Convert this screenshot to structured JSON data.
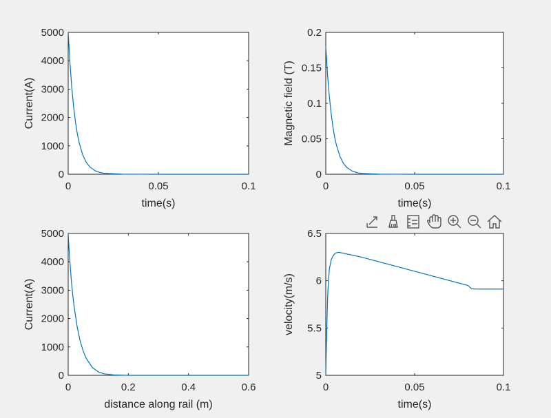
{
  "window": {
    "background": "#f0f0f0"
  },
  "toolbar": {
    "icons": [
      "export-icon",
      "brush-icon",
      "legend-icon",
      "pan-icon",
      "zoom-in-icon",
      "zoom-out-icon",
      "home-icon"
    ]
  },
  "colors": {
    "line": "#0072bd",
    "axes": "#262626",
    "plot_bg": "#ffffff"
  },
  "chart_data": [
    {
      "type": "line",
      "title": "",
      "xlabel": "time(s)",
      "ylabel": "Current(A)",
      "xlim": [
        0,
        0.1
      ],
      "ylim": [
        0,
        5000
      ],
      "xticks": [
        0,
        0.05,
        0.1
      ],
      "xtick_labels": [
        "0",
        "0.05",
        "0.1"
      ],
      "yticks": [
        0,
        1000,
        2000,
        3000,
        4000,
        5000
      ],
      "ytick_labels": [
        "0",
        "1000",
        "2000",
        "3000",
        "4000",
        "5000"
      ],
      "grid": false,
      "series": [
        {
          "x": [
            0,
            0.001,
            0.002,
            0.003,
            0.004,
            0.005,
            0.006,
            0.008,
            0.01,
            0.012,
            0.015,
            0.018,
            0.02,
            0.03,
            0.05,
            0.07,
            0.1
          ],
          "y": [
            5000,
            3900,
            3050,
            2380,
            1860,
            1450,
            1130,
            690,
            420,
            255,
            120,
            55,
            30,
            5,
            0,
            0,
            0
          ]
        }
      ]
    },
    {
      "type": "line",
      "title": "",
      "xlabel": "time(s)",
      "ylabel": "Magnetic field (T)",
      "xlim": [
        0,
        0.1
      ],
      "ylim": [
        0,
        0.2
      ],
      "xticks": [
        0,
        0.05,
        0.1
      ],
      "xtick_labels": [
        "0",
        "0.05",
        "0.1"
      ],
      "yticks": [
        0,
        0.05,
        0.1,
        0.15,
        0.2
      ],
      "ytick_labels": [
        "0",
        "0.05",
        "0.1",
        "0.15",
        "0.2"
      ],
      "grid": false,
      "series": [
        {
          "x": [
            0,
            0.001,
            0.002,
            0.003,
            0.004,
            0.005,
            0.006,
            0.008,
            0.01,
            0.012,
            0.015,
            0.018,
            0.02,
            0.03,
            0.05,
            0.07,
            0.1
          ],
          "y": [
            0.18,
            0.14,
            0.11,
            0.086,
            0.067,
            0.052,
            0.041,
            0.025,
            0.015,
            0.0092,
            0.0043,
            0.002,
            0.0011,
            0.0002,
            0,
            0,
            0
          ]
        }
      ]
    },
    {
      "type": "line",
      "title": "",
      "xlabel": "distance along rail (m)",
      "ylabel": "Current(A)",
      "xlim": [
        0,
        0.6
      ],
      "ylim": [
        0,
        5000
      ],
      "xticks": [
        0,
        0.2,
        0.4,
        0.6
      ],
      "xtick_labels": [
        "0",
        "0.2",
        "0.4",
        "0.6"
      ],
      "yticks": [
        0,
        1000,
        2000,
        3000,
        4000,
        5000
      ],
      "ytick_labels": [
        "0",
        "1000",
        "2000",
        "3000",
        "4000",
        "5000"
      ],
      "grid": false,
      "series": [
        {
          "x": [
            0,
            0.002,
            0.005,
            0.01,
            0.015,
            0.02,
            0.03,
            0.04,
            0.05,
            0.06,
            0.08,
            0.1,
            0.12,
            0.15,
            0.2,
            0.3,
            0.4,
            0.5,
            0.6
          ],
          "y": [
            5000,
            4600,
            4100,
            3400,
            2850,
            2400,
            1700,
            1200,
            850,
            600,
            280,
            120,
            50,
            15,
            0,
            0,
            0,
            0,
            0
          ]
        }
      ]
    },
    {
      "type": "line",
      "title": "",
      "xlabel": "time(s)",
      "ylabel": "velocity(m/s)",
      "xlim": [
        0,
        0.1
      ],
      "ylim": [
        5,
        6.5
      ],
      "xticks": [
        0,
        0.05,
        0.1
      ],
      "xtick_labels": [
        "0",
        "0.05",
        "0.1"
      ],
      "yticks": [
        5,
        5.5,
        6,
        6.5
      ],
      "ytick_labels": [
        "5",
        "5.5",
        "6",
        "6.5"
      ],
      "grid": false,
      "series": [
        {
          "x": [
            0,
            0.0005,
            0.001,
            0.0015,
            0.002,
            0.003,
            0.004,
            0.005,
            0.006,
            0.007,
            0.008,
            0.01,
            0.02,
            0.03,
            0.04,
            0.05,
            0.06,
            0.07,
            0.08,
            0.082,
            0.085,
            0.09,
            0.1
          ],
          "y": [
            5,
            5.45,
            5.8,
            6.0,
            6.12,
            6.22,
            6.26,
            6.285,
            6.295,
            6.3,
            6.298,
            6.29,
            6.25,
            6.2,
            6.15,
            6.1,
            6.05,
            6.0,
            5.95,
            5.915,
            5.912,
            5.912,
            5.912
          ]
        }
      ]
    }
  ]
}
